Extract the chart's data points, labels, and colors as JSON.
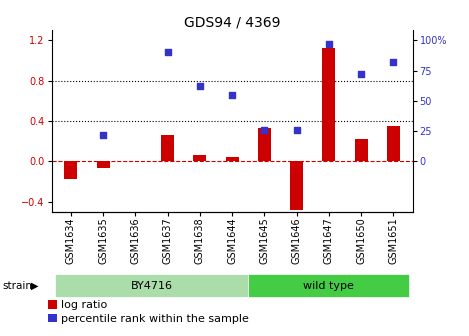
{
  "title": "GDS94 / 4369",
  "samples": [
    "GSM1634",
    "GSM1635",
    "GSM1636",
    "GSM1637",
    "GSM1638",
    "GSM1644",
    "GSM1645",
    "GSM1646",
    "GSM1647",
    "GSM1650",
    "GSM1651"
  ],
  "log_ratio": [
    -0.18,
    -0.07,
    0.0,
    0.26,
    0.06,
    0.04,
    0.33,
    -0.48,
    1.12,
    0.22,
    0.35
  ],
  "percentile_rank_pct": [
    null,
    22,
    null,
    90,
    62,
    55,
    26,
    26,
    97,
    72,
    82
  ],
  "strain_groups": [
    {
      "label": "BY4716",
      "start": 0,
      "end": 5,
      "color": "#aaddaa"
    },
    {
      "label": "wild type",
      "start": 6,
      "end": 10,
      "color": "#44cc44"
    }
  ],
  "ylim_left": [
    -0.5,
    1.3
  ],
  "ylim_right": [
    0,
    108.333
  ],
  "yticks_left": [
    -0.4,
    0.0,
    0.4,
    0.8,
    1.2
  ],
  "yticks_right": [
    0,
    25,
    50,
    75,
    100
  ],
  "bar_color": "#cc0000",
  "dot_color": "#3333cc",
  "zero_line_color": "#cc0000",
  "hline_color": "#000000",
  "title_fontsize": 10,
  "tick_fontsize": 7,
  "legend_fontsize": 8,
  "bar_width": 0.4
}
